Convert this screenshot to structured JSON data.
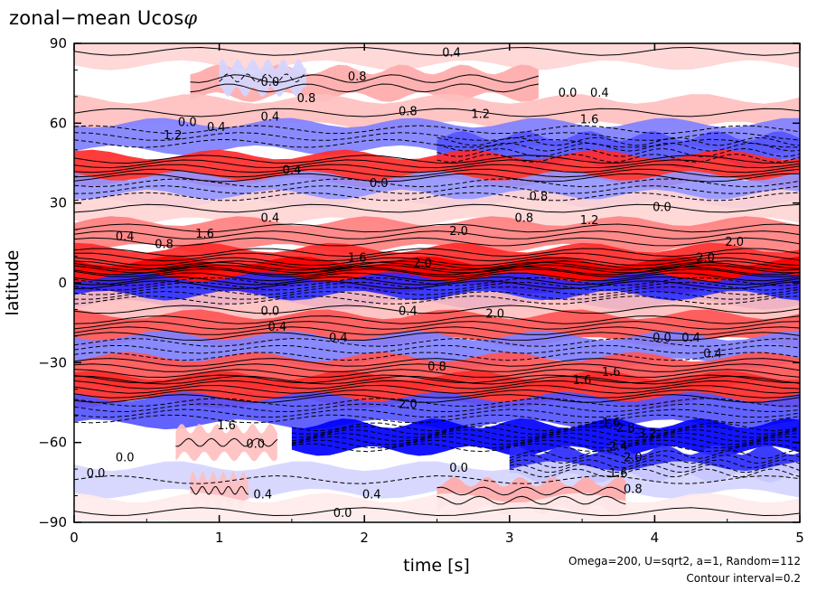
{
  "chart_data": {
    "type": "heatmap",
    "title": "zonal−mean Ucos",
    "title_symbol": "φ",
    "xlabel": "time [s]",
    "ylabel": "latitude",
    "xlim": [
      0,
      5
    ],
    "ylim": [
      -90,
      90
    ],
    "x_ticks": [
      0,
      1,
      2,
      3,
      4,
      5
    ],
    "x_tick_labels": [
      "0",
      "1",
      "2",
      "3",
      "4",
      "5"
    ],
    "y_ticks": [
      90,
      60,
      30,
      0,
      -30,
      -60,
      -90
    ],
    "y_tick_labels": [
      "90",
      "60",
      "30",
      "0",
      "−30",
      "−60",
      "−90"
    ],
    "grid": false,
    "colors": {
      "positive": "#ff0000",
      "negative": "#0000ff",
      "zero": "#ffffff",
      "contour": "#000000"
    },
    "bands": [
      {
        "lat": 87,
        "time": [
          0,
          5
        ],
        "value": 0.4
      },
      {
        "lat": 75,
        "time": [
          0.8,
          3.2
        ],
        "value": 0.8
      },
      {
        "lat": 77,
        "time": [
          1.0,
          1.6
        ],
        "value": -0.4
      },
      {
        "lat": 64,
        "time": [
          0,
          5
        ],
        "value": 0.6
      },
      {
        "lat": 55,
        "time": [
          0,
          5
        ],
        "value": -1.2
      },
      {
        "lat": 50,
        "time": [
          2.5,
          5
        ],
        "value": -1.6
      },
      {
        "lat": 43,
        "time": [
          0,
          5
        ],
        "value": 2.0
      },
      {
        "lat": 35,
        "time": [
          0,
          5
        ],
        "value": -1.0
      },
      {
        "lat": 28,
        "time": [
          0,
          5
        ],
        "value": 0.4
      },
      {
        "lat": 18,
        "time": [
          0,
          5
        ],
        "value": 1.2
      },
      {
        "lat": 8,
        "time": [
          0,
          5
        ],
        "value": 2.0
      },
      {
        "lat": 3,
        "time": [
          0,
          5
        ],
        "value": 2.4
      },
      {
        "lat": -3,
        "time": [
          0,
          5
        ],
        "value": -2.0
      },
      {
        "lat": -10,
        "time": [
          0,
          5
        ],
        "value": 0.6
      },
      {
        "lat": -17,
        "time": [
          0,
          5
        ],
        "value": 1.6
      },
      {
        "lat": -25,
        "time": [
          0,
          5
        ],
        "value": -1.2
      },
      {
        "lat": -33,
        "time": [
          0,
          5
        ],
        "value": 1.6
      },
      {
        "lat": -40,
        "time": [
          0,
          5
        ],
        "value": 2.0
      },
      {
        "lat": -48,
        "time": [
          0,
          5
        ],
        "value": -1.6
      },
      {
        "lat": -58,
        "time": [
          1.5,
          5
        ],
        "value": -2.8
      },
      {
        "lat": -60,
        "time": [
          0.7,
          1.4
        ],
        "value": 0.6
      },
      {
        "lat": -68,
        "time": [
          3.0,
          5
        ],
        "value": -2.0
      },
      {
        "lat": -74,
        "time": [
          0,
          5
        ],
        "value": -0.4
      },
      {
        "lat": -80,
        "time": [
          2.5,
          3.8
        ],
        "value": 0.8
      },
      {
        "lat": -78,
        "time": [
          0.8,
          1.2
        ],
        "value": 0.6
      },
      {
        "lat": -86,
        "time": [
          0,
          5
        ],
        "value": 0.2
      }
    ],
    "contour_labels": [
      {
        "text": "0.4",
        "t": 2.6,
        "lat": 85
      },
      {
        "text": "0.0",
        "t": 1.35,
        "lat": 74
      },
      {
        "text": "0.8",
        "t": 1.95,
        "lat": 76
      },
      {
        "text": "0.8",
        "t": 1.6,
        "lat": 68
      },
      {
        "text": "0.0",
        "t": 3.4,
        "lat": 70
      },
      {
        "text": "0.4",
        "t": 3.62,
        "lat": 70
      },
      {
        "text": "0.8",
        "t": 2.3,
        "lat": 63
      },
      {
        "text": "1.2",
        "t": 2.8,
        "lat": 62
      },
      {
        "text": "0.4",
        "t": 1.35,
        "lat": 61
      },
      {
        "text": "1.6",
        "t": 3.55,
        "lat": 60
      },
      {
        "text": "0.0",
        "t": 0.78,
        "lat": 59
      },
      {
        "text": "0.4",
        "t": 0.98,
        "lat": 57
      },
      {
        "text": "1.2",
        "t": 0.68,
        "lat": 54
      },
      {
        "text": "0.4",
        "t": 1.5,
        "lat": 41
      },
      {
        "text": "0.0",
        "t": 2.1,
        "lat": 36
      },
      {
        "text": "0.8",
        "t": 3.2,
        "lat": 31
      },
      {
        "text": "0.0",
        "t": 4.05,
        "lat": 27
      },
      {
        "text": "0.4",
        "t": 1.35,
        "lat": 23
      },
      {
        "text": "0.8",
        "t": 3.1,
        "lat": 23
      },
      {
        "text": "1.2",
        "t": 3.55,
        "lat": 22
      },
      {
        "text": "0.4",
        "t": 0.35,
        "lat": 16
      },
      {
        "text": "0.8",
        "t": 0.62,
        "lat": 13
      },
      {
        "text": "1.6",
        "t": 0.9,
        "lat": 17
      },
      {
        "text": "2.0",
        "t": 2.65,
        "lat": 18
      },
      {
        "text": "2.0",
        "t": 4.55,
        "lat": 14
      },
      {
        "text": "2.0",
        "t": 4.35,
        "lat": 8
      },
      {
        "text": "1.6",
        "t": 1.95,
        "lat": 8
      },
      {
        "text": "2.0",
        "t": 2.4,
        "lat": 6
      },
      {
        "text": "0.0",
        "t": 1.35,
        "lat": -12
      },
      {
        "text": "0.4",
        "t": 2.3,
        "lat": -12
      },
      {
        "text": "2.0",
        "t": 2.9,
        "lat": -13
      },
      {
        "text": "0.4",
        "t": 1.4,
        "lat": -18
      },
      {
        "text": "0.4",
        "t": 1.82,
        "lat": -22
      },
      {
        "text": "0.0",
        "t": 4.05,
        "lat": -22
      },
      {
        "text": "0.4",
        "t": 4.25,
        "lat": -22
      },
      {
        "text": "0.4",
        "t": 4.4,
        "lat": -28
      },
      {
        "text": "0.8",
        "t": 2.5,
        "lat": -33
      },
      {
        "text": "1.6",
        "t": 3.5,
        "lat": -38
      },
      {
        "text": "1.6",
        "t": 3.7,
        "lat": -35
      },
      {
        "text": "2.0",
        "t": 2.3,
        "lat": -47
      },
      {
        "text": "1.6",
        "t": 3.7,
        "lat": -54
      },
      {
        "text": "2.8",
        "t": 3.8,
        "lat": -56
      },
      {
        "text": "3.2",
        "t": 3.95,
        "lat": -58
      },
      {
        "text": "1.6",
        "t": 1.05,
        "lat": -55
      },
      {
        "text": "0.0",
        "t": 1.25,
        "lat": -62
      },
      {
        "text": "2.4",
        "t": 3.75,
        "lat": -63
      },
      {
        "text": "2.0",
        "t": 3.85,
        "lat": -67
      },
      {
        "text": "0.0",
        "t": 0.35,
        "lat": -67
      },
      {
        "text": "0.0",
        "t": 0.15,
        "lat": -73
      },
      {
        "text": "0.0",
        "t": 2.65,
        "lat": -71
      },
      {
        "text": "1.6",
        "t": 3.75,
        "lat": -73
      },
      {
        "text": "0.8",
        "t": 3.85,
        "lat": -79
      },
      {
        "text": "0.4",
        "t": 1.3,
        "lat": -81
      },
      {
        "text": "0.4",
        "t": 2.05,
        "lat": -81
      },
      {
        "text": "0.0",
        "t": 1.85,
        "lat": -88
      }
    ]
  },
  "footnote": {
    "line1": "Omega=200, U=sqrt2, a=1, Random=112",
    "line2": "Contour interval=0.2"
  }
}
